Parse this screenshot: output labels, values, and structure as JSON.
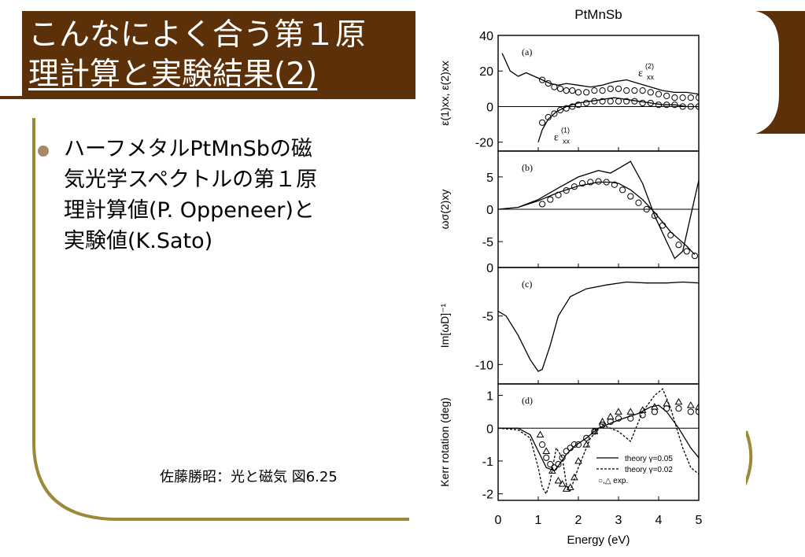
{
  "slide": {
    "title_line_1": "こんなによく合う第１原",
    "title_line_2": "理計算と実験結果(2)",
    "bullet_lines": [
      "ハーフメタルPtMnSbの磁",
      "気光学スペクトルの第１原",
      "理計算値(P. Oppeneer)と",
      "実験値(K.Sato)"
    ],
    "citation": "佐藤勝昭：光と磁気 図6.25",
    "colors": {
      "title_bg": "#5c3008",
      "frame": "#9a8a3a",
      "bullet": "#a48a6a"
    }
  },
  "chart_data": [
    {
      "type": "line",
      "title": "PtMnSb",
      "panel_label": "(a)",
      "ylabel": "ε(1)xx, ε(2)xx",
      "ylim": [
        -25,
        40
      ],
      "yticks": [
        -20,
        0,
        20,
        40
      ],
      "xlim": [
        0,
        5
      ],
      "series": [
        {
          "name": "ε(2)xx",
          "kind": "theory",
          "x": [
            0.1,
            0.3,
            0.5,
            0.7,
            0.9,
            1.1,
            1.3,
            1.5,
            1.7,
            2.0,
            2.3,
            2.6,
            2.9,
            3.2,
            3.5,
            3.8,
            4.1,
            4.4,
            4.7,
            5.0
          ],
          "y": [
            30,
            20,
            17,
            19,
            17,
            15,
            13,
            12,
            13,
            12,
            11,
            12,
            14,
            15,
            13,
            11,
            9,
            8,
            8,
            7
          ]
        },
        {
          "kind": "theory",
          "x": [
            1.0,
            1.1,
            1.25,
            1.45,
            1.7,
            2.0,
            2.3,
            2.6,
            2.9,
            3.2,
            3.5,
            3.8,
            4.1,
            4.4,
            4.7,
            5.0
          ],
          "y": [
            -20,
            -13,
            -7,
            -3,
            0,
            2,
            3,
            4,
            5,
            4,
            3,
            2,
            1,
            1,
            0,
            0
          ]
        },
        {
          "kind": "exp",
          "x": [
            1.1,
            1.25,
            1.4,
            1.55,
            1.7,
            1.85,
            2.0,
            2.2,
            2.4,
            2.6,
            2.8,
            3.0,
            3.2,
            3.4,
            3.6,
            3.8,
            4.0,
            4.2,
            4.4,
            4.6,
            4.8,
            5.0
          ],
          "y": [
            15,
            13,
            11,
            10,
            9,
            9,
            8,
            8,
            9,
            9,
            10,
            10,
            9,
            9,
            9,
            8,
            7,
            6,
            5,
            5,
            5,
            5
          ]
        },
        {
          "name": "ε(1)xx",
          "kind": "exp",
          "x": [
            1.1,
            1.25,
            1.4,
            1.55,
            1.7,
            1.85,
            2.0,
            2.2,
            2.4,
            2.6,
            2.8,
            3.0,
            3.2,
            3.4,
            3.6,
            3.8,
            4.0,
            4.2,
            4.4,
            4.6,
            4.8,
            5.0
          ],
          "y": [
            -9,
            -6,
            -4,
            -2,
            -1,
            0,
            1,
            2,
            3,
            3,
            3,
            3,
            3,
            3,
            2,
            2,
            1,
            1,
            1,
            0,
            0,
            0
          ]
        }
      ]
    },
    {
      "type": "line",
      "panel_label": "(b)",
      "ylabel": "ωσ(2)xy",
      "ylim": [
        -9,
        9
      ],
      "yticks": [
        -5,
        0,
        5
      ],
      "xlim": [
        0,
        5
      ],
      "series": [
        {
          "kind": "theory",
          "x": [
            0,
            0.5,
            1.0,
            1.5,
            2.0,
            2.5,
            2.8,
            3.0,
            3.3,
            3.6,
            3.9,
            4.2,
            4.4,
            4.6,
            4.8,
            5.0
          ],
          "y": [
            0,
            0.3,
            1.5,
            3.3,
            5.0,
            6.0,
            5.6,
            6.3,
            7.4,
            4.0,
            -1.0,
            -5.0,
            -7.6,
            -6.5,
            -1.0,
            4.5
          ]
        },
        {
          "kind": "theory",
          "x": [
            0.5,
            1.0,
            1.5,
            2.0,
            2.5,
            2.8,
            3.0,
            3.3,
            3.6,
            3.9,
            4.1,
            4.3,
            4.5,
            4.7,
            4.9
          ],
          "y": [
            0.3,
            1.3,
            2.6,
            3.6,
            4.2,
            4.2,
            4.0,
            3.0,
            1.5,
            -0.5,
            -2.0,
            -3.5,
            -4.6,
            -5.7,
            -7.0
          ]
        },
        {
          "kind": "exp",
          "x": [
            1.1,
            1.3,
            1.5,
            1.7,
            1.9,
            2.1,
            2.3,
            2.5,
            2.7,
            2.9,
            3.1,
            3.3,
            3.5,
            3.7,
            3.9,
            4.1,
            4.3,
            4.5,
            4.7,
            4.9
          ],
          "y": [
            0.8,
            1.5,
            2.2,
            2.9,
            3.5,
            4.0,
            4.2,
            4.3,
            4.2,
            3.8,
            3.0,
            2.0,
            1.0,
            0.0,
            -1.0,
            -2.5,
            -4.0,
            -5.5,
            -6.5,
            -7.2
          ]
        }
      ]
    },
    {
      "type": "line",
      "panel_label": "(c)",
      "ylabel": "Im[ωD]⁻¹",
      "ylim": [
        -12,
        0
      ],
      "yticks": [
        -10,
        -5,
        0
      ],
      "xlim": [
        0,
        5
      ],
      "series": [
        {
          "kind": "theory",
          "x": [
            0,
            0.2,
            0.5,
            0.8,
            1.0,
            1.1,
            1.3,
            1.5,
            1.8,
            2.2,
            2.7,
            3.2,
            3.7,
            4.2,
            4.6,
            5.0
          ],
          "y": [
            -4.5,
            -5.0,
            -7.0,
            -9.5,
            -10.7,
            -10.5,
            -8.0,
            -5.0,
            -3.0,
            -2.2,
            -1.8,
            -1.5,
            -1.6,
            -1.6,
            -1.5,
            -1.6
          ]
        }
      ]
    },
    {
      "type": "line",
      "panel_label": "(d)",
      "ylabel": "Kerr rotation (deg)",
      "xlabel": "Energy (eV)",
      "xlim": [
        0,
        5
      ],
      "xticks": [
        0,
        1,
        2,
        3,
        4,
        5
      ],
      "ylim": [
        -2.2,
        1.35
      ],
      "yticks": [
        -2,
        -1,
        0,
        1
      ],
      "legend": {
        "position": "bottom-right",
        "entries": [
          "theory γ=0.05",
          "theory γ=0.02",
          "○,△  exp."
        ]
      },
      "series": [
        {
          "name": "theory γ=0.05",
          "kind": "theory",
          "x": [
            0,
            0.5,
            0.8,
            1.0,
            1.2,
            1.4,
            1.5,
            1.7,
            1.9,
            2.2,
            2.5,
            3.0,
            3.5,
            3.8,
            4.0,
            4.2,
            4.5,
            4.8,
            5.0
          ],
          "y": [
            0,
            0,
            -0.2,
            -0.7,
            -1.2,
            -1.3,
            -1.15,
            -0.8,
            -0.55,
            -0.3,
            0.0,
            0.25,
            0.45,
            0.65,
            0.7,
            0.5,
            0.0,
            -0.6,
            -0.9
          ]
        },
        {
          "name": "theory γ=0.02",
          "kind": "theory-dashed",
          "x": [
            0,
            0.5,
            0.8,
            1.0,
            1.1,
            1.2,
            1.3,
            1.45,
            1.6,
            1.7,
            1.8,
            2.0,
            2.3,
            2.6,
            3.0,
            3.3,
            3.6,
            3.9,
            4.1,
            4.3,
            4.6,
            4.8,
            5.0
          ],
          "y": [
            0,
            -0.05,
            -0.3,
            -1.2,
            -1.8,
            -2.0,
            -1.6,
            -0.6,
            -0.9,
            -1.7,
            -1.9,
            -1.2,
            -0.3,
            0.1,
            -0.1,
            -0.4,
            0.5,
            1.0,
            1.2,
            0.6,
            -0.6,
            -1.2,
            -1.4
          ]
        },
        {
          "kind": "exp",
          "x": [
            1.1,
            1.2,
            1.3,
            1.4,
            1.5,
            1.6,
            1.7,
            1.8,
            1.9,
            2.0,
            2.2,
            2.4,
            2.6,
            2.8,
            3.0,
            3.3,
            3.6,
            3.9,
            4.2,
            4.5,
            4.8,
            5.0
          ],
          "y": [
            -0.5,
            -0.9,
            -1.1,
            -1.2,
            -1.1,
            -0.9,
            -0.7,
            -0.6,
            -0.5,
            -0.5,
            -0.3,
            -0.1,
            0.1,
            0.2,
            0.3,
            0.3,
            0.4,
            0.5,
            0.6,
            0.6,
            0.5,
            0.5
          ]
        },
        {
          "kind": "exp-triangle",
          "x": [
            1.05,
            1.2,
            1.35,
            1.5,
            1.6,
            1.7,
            1.8,
            1.9,
            2.0,
            2.2,
            2.4,
            2.6,
            2.8,
            3.0,
            3.3,
            3.6,
            3.9,
            4.2,
            4.5,
            4.8,
            5.0
          ],
          "y": [
            -0.2,
            -0.7,
            -1.3,
            -1.6,
            -1.7,
            -1.85,
            -1.8,
            -1.5,
            -1.0,
            -0.5,
            -0.1,
            0.2,
            0.35,
            0.5,
            0.5,
            0.55,
            0.65,
            0.75,
            0.8,
            0.7,
            0.65
          ]
        }
      ]
    }
  ]
}
